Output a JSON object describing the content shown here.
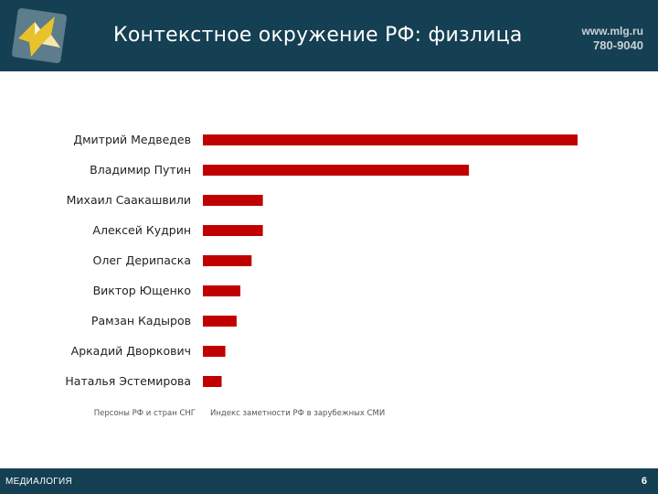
{
  "header": {
    "title": "Контекстное окружение РФ: физлица",
    "site": "www.mlg.ru",
    "phone": "780-9040",
    "logo_icon": "medialogia-logo-icon"
  },
  "footer": {
    "brand": "МЕДИАЛОГИЯ",
    "page_number": "6"
  },
  "colors": {
    "header_bg": "#153f52",
    "bar": "#c00000"
  },
  "chart_data": {
    "type": "bar",
    "orientation": "horizontal",
    "categories": [
      "Дмитрий Медведев",
      "Владимир Путин",
      "Михаил Саакашвили",
      "Алексей Кудрин",
      "Олег Дерипаска",
      "Виктор Ющенко",
      "Рамзан Кадыров",
      "Аркадий Дворкович",
      "Наталья Эстемирова"
    ],
    "values": [
      100,
      71,
      16,
      16,
      13,
      10,
      9,
      6,
      5
    ],
    "xlabel": "Индекс заметности РФ в зарубежных СМИ",
    "ylabel": "Персоны РФ и стран СНГ",
    "grid": false,
    "legend": "none"
  }
}
